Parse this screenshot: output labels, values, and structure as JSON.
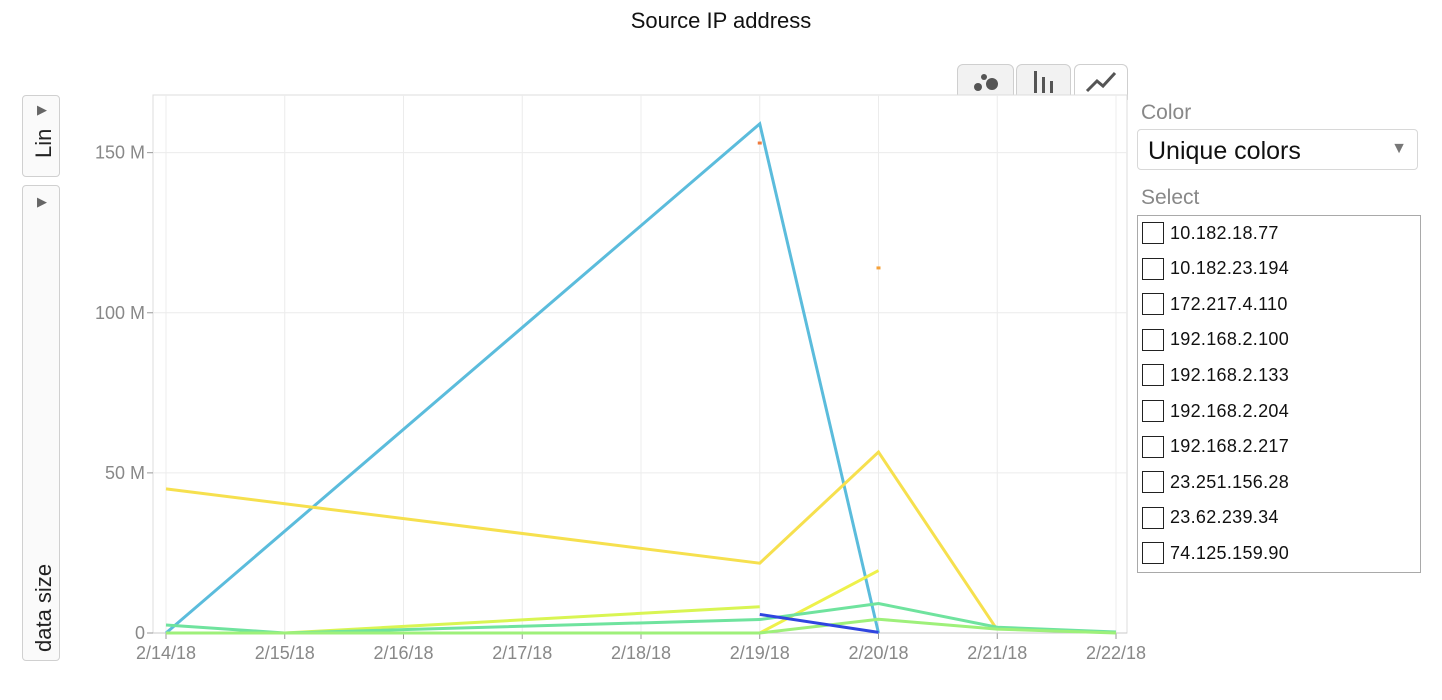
{
  "title": "Source IP address",
  "y_scale_button": {
    "label": "Lin"
  },
  "y_axis_button": {
    "label": "data size"
  },
  "color_control": {
    "label": "Color",
    "selected": "Unique colors"
  },
  "select_control": {
    "label": "Select",
    "items": [
      "10.182.18.77",
      "10.182.23.194",
      "172.217.4.110",
      "192.168.2.100",
      "192.168.2.133",
      "192.168.2.204",
      "192.168.2.217",
      "23.251.156.28",
      "23.62.239.34",
      "74.125.159.90"
    ]
  },
  "chart_type_tabs": [
    {
      "name": "bubble-chart-tab",
      "icon": "bubble-icon",
      "active": false
    },
    {
      "name": "bar-chart-tab",
      "icon": "bar-chart-icon",
      "active": false
    },
    {
      "name": "line-chart-tab",
      "icon": "line-chart-icon",
      "active": true
    }
  ],
  "chart_data": {
    "type": "line",
    "title": "Source IP address",
    "ylabel": "data size",
    "x": [
      "2/14/18",
      "2/15/18",
      "2/16/18",
      "2/17/18",
      "2/18/18",
      "2/19/18",
      "2/20/18",
      "2/21/18",
      "2/22/18"
    ],
    "ylim": [
      0,
      168000000
    ],
    "y_ticks": [
      0,
      50000000,
      100000000,
      150000000
    ],
    "y_tick_labels": [
      "0",
      "50 M",
      "100 M",
      "150 M"
    ],
    "grid": true,
    "series": [
      {
        "color": "#5bbcdc",
        "points": [
          [
            "2/14/18",
            0
          ],
          [
            "2/19/18",
            159000000
          ],
          [
            "2/20/18",
            0
          ]
        ]
      },
      {
        "color": "#f6e04e",
        "points": [
          [
            "2/14/18",
            45000000
          ],
          [
            "2/19/18",
            21800000
          ],
          [
            "2/20/18",
            56500000
          ],
          [
            "2/21/18",
            1000000
          ]
        ]
      },
      {
        "color": "#d9f553",
        "points": [
          [
            "2/15/18",
            0
          ],
          [
            "2/19/18",
            8200000
          ]
        ]
      },
      {
        "color": "#eef14a",
        "points": [
          [
            "2/19/18",
            0
          ],
          [
            "2/20/18",
            19500000
          ]
        ]
      },
      {
        "color": "#6fe39e",
        "points": [
          [
            "2/14/18",
            2500000
          ],
          [
            "2/15/18",
            0
          ],
          [
            "2/19/18",
            4200000
          ],
          [
            "2/20/18",
            9200000
          ],
          [
            "2/21/18",
            1800000
          ],
          [
            "2/22/18",
            300000
          ]
        ]
      },
      {
        "color": "#9ef07a",
        "points": [
          [
            "2/14/18",
            0
          ],
          [
            "2/19/18",
            0
          ],
          [
            "2/20/18",
            4300000
          ],
          [
            "2/21/18",
            1200000
          ],
          [
            "2/22/18",
            0
          ]
        ]
      },
      {
        "color": "#2f45e0",
        "points": [
          [
            "2/19/18",
            5800000
          ],
          [
            "2/20/18",
            200000
          ]
        ]
      },
      {
        "color": "#f07a3c",
        "points": [
          [
            "2/19/18",
            153000000
          ]
        ]
      },
      {
        "color": "#f5a13a",
        "points": [
          [
            "2/20/18",
            114000000
          ]
        ]
      }
    ]
  }
}
